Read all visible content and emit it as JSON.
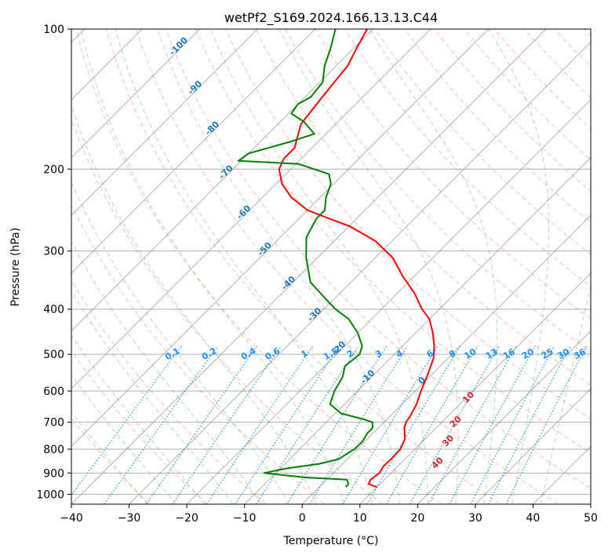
{
  "chart_data": {
    "type": "line",
    "chart_kind": "skew-t log-p",
    "title": "wetPf2_S169.2024.166.13.13.C44",
    "xlabel": "Temperature (°C)",
    "ylabel": "Pressure (hPa)",
    "xlim": [
      -40,
      50
    ],
    "ylim": [
      1050,
      100
    ],
    "y_scale": "log",
    "grid": true,
    "x_ticks": [
      -40,
      -30,
      -20,
      -10,
      0,
      10,
      20,
      30,
      40,
      50
    ],
    "y_ticks": [
      100,
      200,
      300,
      400,
      500,
      600,
      700,
      800,
      900,
      1000
    ],
    "x_tick_labels": [
      "−40",
      "−30",
      "−20",
      "−10",
      "0",
      "10",
      "20",
      "30",
      "40",
      "50"
    ],
    "y_tick_labels": [
      "100",
      "200",
      "300",
      "400",
      "500",
      "600",
      "700",
      "800",
      "900",
      "1000"
    ],
    "series": [
      {
        "role": "temperature",
        "color": "#ff0000",
        "points": [
          [
            10.0,
            965
          ],
          [
            8.0,
            950
          ],
          [
            7.6,
            930
          ],
          [
            8.0,
            900
          ],
          [
            7.5,
            870
          ],
          [
            7.6,
            840
          ],
          [
            7.5,
            800
          ],
          [
            6.5,
            760
          ],
          [
            4.5,
            720
          ],
          [
            3.8,
            700
          ],
          [
            3.5,
            680
          ],
          [
            2.5,
            640
          ],
          [
            1.0,
            600
          ],
          [
            -0.8,
            550
          ],
          [
            -2.5,
            510
          ],
          [
            -4.5,
            480
          ],
          [
            -7.0,
            450
          ],
          [
            -10.0,
            420
          ],
          [
            -13.0,
            400
          ],
          [
            -17.0,
            370
          ],
          [
            -22.0,
            340
          ],
          [
            -27.0,
            310
          ],
          [
            -33.0,
            285
          ],
          [
            -40.0,
            265
          ],
          [
            -45.0,
            255
          ],
          [
            -50.0,
            245
          ],
          [
            -55.0,
            230
          ],
          [
            -59.0,
            215
          ],
          [
            -62.0,
            200
          ],
          [
            -63.0,
            190
          ],
          [
            -63.0,
            180
          ],
          [
            -64.5,
            170
          ],
          [
            -66.0,
            160
          ],
          [
            -66.5,
            150
          ],
          [
            -67.0,
            140
          ],
          [
            -67.5,
            130
          ],
          [
            -68.0,
            120
          ],
          [
            -69.5,
            110
          ],
          [
            -71.0,
            100
          ]
        ]
      },
      {
        "role": "dewpoint",
        "color": "#008000",
        "points": [
          [
            4.6,
            965
          ],
          [
            4.5,
            950
          ],
          [
            3.5,
            930
          ],
          [
            -4.0,
            920
          ],
          [
            -8.0,
            910
          ],
          [
            -12.0,
            900
          ],
          [
            -9.0,
            880
          ],
          [
            -4.0,
            860
          ],
          [
            -1.5,
            840
          ],
          [
            -0.5,
            800
          ],
          [
            -0.4,
            770
          ],
          [
            -1.0,
            740
          ],
          [
            -1.0,
            720
          ],
          [
            -2.0,
            700
          ],
          [
            -4.0,
            690
          ],
          [
            -9.0,
            670
          ],
          [
            -12.5,
            640
          ],
          [
            -14.0,
            600
          ],
          [
            -15.0,
            560
          ],
          [
            -16.5,
            530
          ],
          [
            -16.0,
            500
          ],
          [
            -17.0,
            480
          ],
          [
            -20.0,
            450
          ],
          [
            -24.0,
            420
          ],
          [
            -28.0,
            400
          ],
          [
            -31.5,
            380
          ],
          [
            -37.0,
            350
          ],
          [
            -42.0,
            310
          ],
          [
            -45.5,
            280
          ],
          [
            -47.0,
            255
          ],
          [
            -47.0,
            245
          ],
          [
            -49.0,
            230
          ],
          [
            -50.5,
            215
          ],
          [
            -52.5,
            205
          ],
          [
            -59.5,
            195
          ],
          [
            -70.5,
            192
          ],
          [
            -70.0,
            185
          ],
          [
            -65.0,
            175
          ],
          [
            -62.0,
            168
          ],
          [
            -66.0,
            158
          ],
          [
            -69.5,
            152
          ],
          [
            -70.0,
            145
          ],
          [
            -69.0,
            140
          ],
          [
            -69.5,
            130
          ],
          [
            -72.0,
            120
          ],
          [
            -74.0,
            110
          ],
          [
            -76.5,
            100
          ]
        ]
      }
    ],
    "dry_adiabat_labels": [
      "-100",
      "-90",
      "-80",
      "-70",
      "-60",
      "-50",
      "-40",
      "-30",
      "-20",
      "-10",
      "0"
    ],
    "moist_adiabat_labels": [
      "10",
      "20",
      "30",
      "40"
    ],
    "mixing_ratio_labels": [
      "0.1",
      "0.2",
      "0.4",
      "0.6",
      "1",
      "1.5",
      "2",
      "3",
      "4",
      "6",
      "8",
      "10",
      "13",
      "16",
      "20",
      "25",
      "30",
      "36"
    ],
    "mixing_ratio_values": [
      0.1,
      0.2,
      0.4,
      0.6,
      1,
      1.5,
      2,
      3,
      4,
      6,
      8,
      10,
      13,
      16,
      20,
      25,
      30,
      36
    ],
    "colors": {
      "temperature": "#ff0000",
      "dewpoint": "#008000",
      "dry_adiabat": "#fa8072",
      "moist_adiabat": "#2ca02c",
      "mixing_ratio": "#1e90ff",
      "isotherm": "#808080",
      "grid": "#b0b0b0",
      "dry_label": "#1f77b4",
      "moist_label": "#d62728"
    }
  }
}
